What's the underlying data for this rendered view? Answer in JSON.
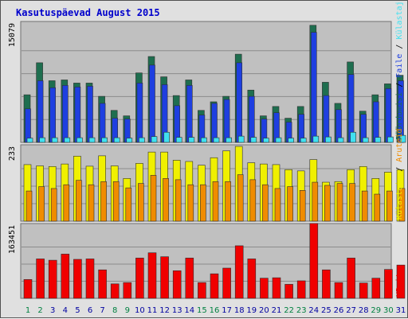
{
  "title": "Kasutuspäevad August 2015",
  "colors": {
    "panel_bg": "#c0c0c0",
    "visits": "#1e6e4f",
    "pages": "#1e3fe0",
    "files": "#40e0f0",
    "hits_pages": "#f0f000",
    "hits_outline": "#8b8b00",
    "kbytes_files": "#f08c00",
    "kbytes": "#f00000",
    "weekday_label": "#008040",
    "weekend_label": "#0000a0"
  },
  "chart_data": [
    {
      "type": "bar",
      "panel": "top",
      "y_tick_label": "15079",
      "ylim": [
        0,
        15079
      ],
      "legend": [
        {
          "text": "Pöördumisi",
          "color": "#1e6e4f"
        },
        {
          "text": "Faile",
          "color": "#1e3fe0"
        },
        {
          "text": "Külastaja",
          "color": "#40e0f0"
        }
      ],
      "legend_separators": [
        "/",
        "/"
      ],
      "categories": [
        "1",
        "2",
        "3",
        "4",
        "5",
        "6",
        "7",
        "8",
        "9",
        "10",
        "11",
        "12",
        "13",
        "14",
        "15",
        "16",
        "17",
        "18",
        "19",
        "20",
        "21",
        "22",
        "23",
        "24",
        "25",
        "26",
        "27",
        "28",
        "29",
        "30",
        "31"
      ],
      "series": [
        {
          "name": "Pöördumisi",
          "values": [
            6100,
            10200,
            7900,
            8000,
            7600,
            7600,
            5900,
            4100,
            3400,
            8900,
            11000,
            8400,
            6000,
            8000,
            4100,
            5200,
            5900,
            11300,
            6700,
            3400,
            4600,
            3100,
            4600,
            15000,
            7700,
            5000,
            10300,
            4000,
            6100,
            7500,
            8600
          ]
        },
        {
          "name": "Faile",
          "values": [
            4300,
            7900,
            7000,
            7300,
            7100,
            7200,
            5000,
            3100,
            3000,
            7600,
            9900,
            7400,
            4700,
            7300,
            3500,
            5000,
            5500,
            10200,
            5900,
            3000,
            3800,
            2600,
            3600,
            14100,
            6000,
            4200,
            8700,
            3600,
            5200,
            6900,
            7900
          ]
        },
        {
          "name": "Külastaja",
          "values": [
            550,
            600,
            600,
            600,
            600,
            600,
            600,
            600,
            550,
            600,
            750,
            1300,
            650,
            650,
            600,
            600,
            600,
            800,
            650,
            550,
            600,
            550,
            550,
            800,
            700,
            600,
            1300,
            600,
            650,
            700,
            900
          ]
        }
      ]
    },
    {
      "type": "bar",
      "panel": "middle",
      "y_tick_label": "233",
      "ylim": [
        0,
        233
      ],
      "legend": [
        {
          "text": "Külastaja",
          "color": "#f0f000"
        },
        {
          "text": "Aruteid",
          "color": "#f08c00"
        }
      ],
      "legend_separators": [
        "/"
      ],
      "categories": [
        "1",
        "2",
        "3",
        "4",
        "5",
        "6",
        "7",
        "8",
        "9",
        "10",
        "11",
        "12",
        "13",
        "14",
        "15",
        "16",
        "17",
        "18",
        "19",
        "20",
        "21",
        "22",
        "23",
        "24",
        "25",
        "26",
        "27",
        "28",
        "29",
        "30",
        "31"
      ],
      "series": [
        {
          "name": "Külastaja",
          "values": [
            180,
            176,
            174,
            182,
            207,
            175,
            208,
            176,
            136,
            184,
            220,
            220,
            194,
            190,
            178,
            202,
            224,
            238,
            186,
            182,
            180,
            164,
            160,
            196,
            124,
            126,
            164,
            174,
            136,
            156,
            164
          ]
        },
        {
          "name": "Aruteid",
          "values": [
            96,
            110,
            104,
            116,
            130,
            116,
            126,
            126,
            106,
            120,
            146,
            136,
            132,
            116,
            116,
            126,
            126,
            148,
            132,
            116,
            104,
            110,
            98,
            124,
            114,
            120,
            120,
            96,
            86,
            96,
            104
          ]
        }
      ]
    },
    {
      "type": "bar",
      "panel": "bottom",
      "y_tick_label": "163451",
      "ylim": [
        0,
        163451
      ],
      "legend": [
        {
          "text": "KBaite",
          "color": "#f00000"
        }
      ],
      "legend_separators": [],
      "categories": [
        "1",
        "2",
        "3",
        "4",
        "5",
        "6",
        "7",
        "8",
        "9",
        "10",
        "11",
        "12",
        "13",
        "14",
        "15",
        "16",
        "17",
        "18",
        "19",
        "20",
        "21",
        "22",
        "23",
        "24",
        "25",
        "26",
        "27",
        "28",
        "29",
        "30",
        "31"
      ],
      "series": [
        {
          "name": "KBaite",
          "values": [
            43000,
            90000,
            87000,
            101000,
            89000,
            90000,
            65000,
            33000,
            36000,
            92000,
            104000,
            95000,
            63000,
            92000,
            36000,
            56000,
            69000,
            120000,
            90000,
            46000,
            47000,
            32000,
            40000,
            171000,
            65000,
            36000,
            92000,
            35000,
            46000,
            66000,
            76000
          ]
        }
      ]
    }
  ],
  "x_labels": [
    {
      "text": "1",
      "weekend": true
    },
    {
      "text": "2",
      "weekend": true
    },
    {
      "text": "3",
      "weekend": false
    },
    {
      "text": "4",
      "weekend": false
    },
    {
      "text": "5",
      "weekend": false
    },
    {
      "text": "6",
      "weekend": false
    },
    {
      "text": "7",
      "weekend": false
    },
    {
      "text": "8",
      "weekend": true
    },
    {
      "text": "9",
      "weekend": true
    },
    {
      "text": "10",
      "weekend": false
    },
    {
      "text": "11",
      "weekend": false
    },
    {
      "text": "12",
      "weekend": false
    },
    {
      "text": "13",
      "weekend": false
    },
    {
      "text": "14",
      "weekend": false
    },
    {
      "text": "15",
      "weekend": true
    },
    {
      "text": "16",
      "weekend": true
    },
    {
      "text": "17",
      "weekend": false
    },
    {
      "text": "18",
      "weekend": false
    },
    {
      "text": "19",
      "weekend": false
    },
    {
      "text": "20",
      "weekend": false
    },
    {
      "text": "21",
      "weekend": false
    },
    {
      "text": "22",
      "weekend": true
    },
    {
      "text": "23",
      "weekend": true
    },
    {
      "text": "24",
      "weekend": false
    },
    {
      "text": "25",
      "weekend": false
    },
    {
      "text": "26",
      "weekend": false
    },
    {
      "text": "27",
      "weekend": false
    },
    {
      "text": "28",
      "weekend": false
    },
    {
      "text": "29",
      "weekend": true
    },
    {
      "text": "30",
      "weekend": true
    },
    {
      "text": "31",
      "weekend": false
    }
  ]
}
